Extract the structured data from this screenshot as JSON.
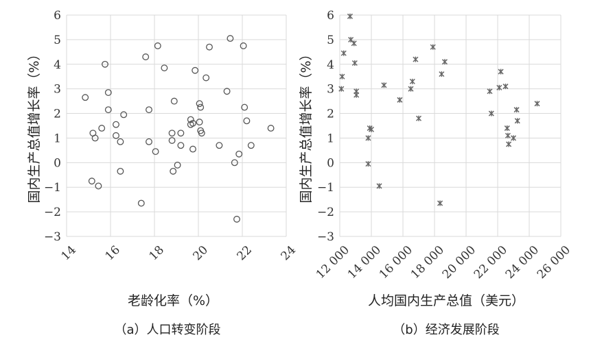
{
  "chart_data": [
    {
      "type": "scatter",
      "caption": "（a）人口转变阶段",
      "xlabel": "老龄化率（%）",
      "ylabel": "国内生产总值增长率（%）",
      "xlim": [
        14,
        24
      ],
      "ylim": [
        -3,
        6
      ],
      "xticks": [
        14,
        16,
        18,
        20,
        22,
        24
      ],
      "yticks": [
        -3,
        -2,
        -1,
        0,
        1,
        2,
        3,
        4,
        5,
        6
      ],
      "marker": "circle",
      "grid": true,
      "points": [
        {
          "x": 14.85,
          "y": 2.65
        },
        {
          "x": 15.2,
          "y": 1.2
        },
        {
          "x": 15.3,
          "y": 1.0
        },
        {
          "x": 15.15,
          "y": -0.75
        },
        {
          "x": 15.45,
          "y": -0.95
        },
        {
          "x": 15.6,
          "y": 1.4
        },
        {
          "x": 15.75,
          "y": 4.0
        },
        {
          "x": 15.9,
          "y": 2.85
        },
        {
          "x": 15.9,
          "y": 2.15
        },
        {
          "x": 16.25,
          "y": 1.55
        },
        {
          "x": 16.25,
          "y": 1.1
        },
        {
          "x": 16.45,
          "y": 0.85
        },
        {
          "x": 16.45,
          "y": -0.35
        },
        {
          "x": 16.6,
          "y": 1.95
        },
        {
          "x": 17.4,
          "y": -1.65
        },
        {
          "x": 17.6,
          "y": 4.3
        },
        {
          "x": 17.75,
          "y": 2.15
        },
        {
          "x": 17.75,
          "y": 0.85
        },
        {
          "x": 18.05,
          "y": 0.45
        },
        {
          "x": 18.15,
          "y": 4.75
        },
        {
          "x": 18.45,
          "y": 3.85
        },
        {
          "x": 18.8,
          "y": 1.2
        },
        {
          "x": 18.8,
          "y": 0.9
        },
        {
          "x": 18.85,
          "y": -0.35
        },
        {
          "x": 18.9,
          "y": 2.5
        },
        {
          "x": 19.05,
          "y": -0.1
        },
        {
          "x": 19.2,
          "y": 1.2
        },
        {
          "x": 19.2,
          "y": 0.7
        },
        {
          "x": 19.65,
          "y": 1.75
        },
        {
          "x": 19.65,
          "y": 1.55
        },
        {
          "x": 19.75,
          "y": 1.6
        },
        {
          "x": 19.75,
          "y": 0.55
        },
        {
          "x": 19.85,
          "y": 3.75
        },
        {
          "x": 20.05,
          "y": 2.4
        },
        {
          "x": 20.05,
          "y": 1.65
        },
        {
          "x": 20.1,
          "y": 1.3
        },
        {
          "x": 20.1,
          "y": 2.25
        },
        {
          "x": 20.15,
          "y": 1.2
        },
        {
          "x": 20.35,
          "y": 3.45
        },
        {
          "x": 20.5,
          "y": 4.7
        },
        {
          "x": 20.95,
          "y": 0.7
        },
        {
          "x": 21.3,
          "y": 2.9
        },
        {
          "x": 21.45,
          "y": 5.05
        },
        {
          "x": 21.65,
          "y": 0.0
        },
        {
          "x": 21.75,
          "y": -2.3
        },
        {
          "x": 21.85,
          "y": 0.35
        },
        {
          "x": 22.05,
          "y": 4.75
        },
        {
          "x": 22.1,
          "y": 2.25
        },
        {
          "x": 22.2,
          "y": 1.7
        },
        {
          "x": 22.4,
          "y": 0.7
        },
        {
          "x": 23.3,
          "y": 1.4
        }
      ]
    },
    {
      "type": "scatter",
      "caption": "（b）经济发展阶段",
      "xlabel": "人均国内生产总值（美元）",
      "ylabel": "国内生产总值增长率（%）",
      "xlim": [
        12000,
        26000
      ],
      "ylim": [
        -3,
        6
      ],
      "xticks": [
        12000,
        14000,
        16000,
        18000,
        20000,
        22000,
        24000,
        26000
      ],
      "xtick_labels": [
        "12 000",
        "14 000",
        "16 000",
        "18 000",
        "20 000",
        "22 000",
        "24 000",
        "26 000"
      ],
      "yticks": [
        -3,
        -2,
        -1,
        0,
        1,
        2,
        3,
        4,
        5,
        6
      ],
      "marker": "star",
      "grid": true,
      "points": [
        {
          "x": 12100,
          "y": 3.0
        },
        {
          "x": 12150,
          "y": 3.5
        },
        {
          "x": 12250,
          "y": 4.45
        },
        {
          "x": 12650,
          "y": 5.95
        },
        {
          "x": 12700,
          "y": 5.0
        },
        {
          "x": 12900,
          "y": 4.85
        },
        {
          "x": 12950,
          "y": 4.05
        },
        {
          "x": 13050,
          "y": 2.9
        },
        {
          "x": 13050,
          "y": 2.75
        },
        {
          "x": 13800,
          "y": 1.0
        },
        {
          "x": 13800,
          "y": -0.05
        },
        {
          "x": 13900,
          "y": 1.4
        },
        {
          "x": 14000,
          "y": 1.35
        },
        {
          "x": 14500,
          "y": -0.95
        },
        {
          "x": 14800,
          "y": 3.15
        },
        {
          "x": 15800,
          "y": 2.55
        },
        {
          "x": 16500,
          "y": 3.0
        },
        {
          "x": 16600,
          "y": 3.3
        },
        {
          "x": 16800,
          "y": 4.2
        },
        {
          "x": 17000,
          "y": 1.8
        },
        {
          "x": 17900,
          "y": 4.7
        },
        {
          "x": 18350,
          "y": -1.65
        },
        {
          "x": 18450,
          "y": 3.6
        },
        {
          "x": 18650,
          "y": 4.1
        },
        {
          "x": 21500,
          "y": 2.9
        },
        {
          "x": 21600,
          "y": 2.0
        },
        {
          "x": 22100,
          "y": 3.05
        },
        {
          "x": 22200,
          "y": 3.7
        },
        {
          "x": 22500,
          "y": 3.1
        },
        {
          "x": 22600,
          "y": 1.4
        },
        {
          "x": 22650,
          "y": 1.1
        },
        {
          "x": 22700,
          "y": 0.75
        },
        {
          "x": 23000,
          "y": 1.0
        },
        {
          "x": 23200,
          "y": 2.15
        },
        {
          "x": 23250,
          "y": 1.7
        },
        {
          "x": 24500,
          "y": 2.4
        }
      ]
    }
  ]
}
